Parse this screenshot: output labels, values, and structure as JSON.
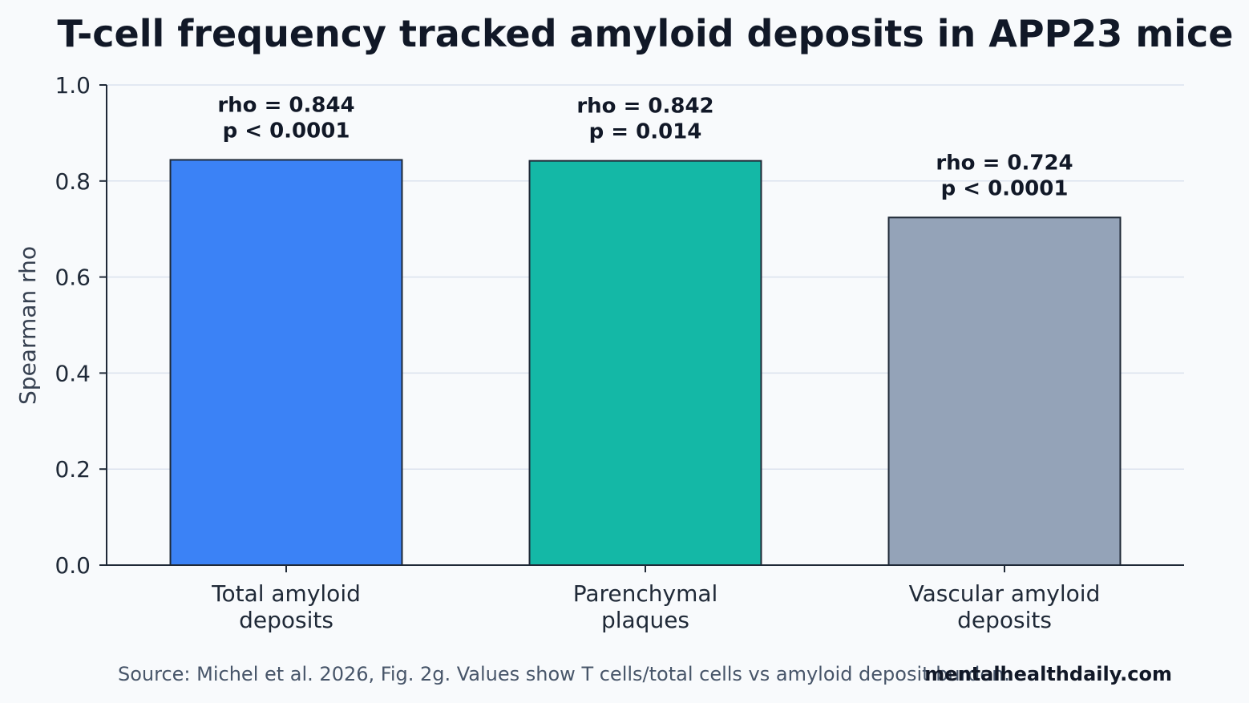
{
  "chart_data": {
    "type": "bar",
    "title": "T-cell frequency tracked amyloid deposits in APP23 mice",
    "ylabel": "Spearman rho",
    "xlabel": "",
    "ylim": [
      0,
      1.0
    ],
    "yticks": [
      "0.0",
      "0.2",
      "0.4",
      "0.6",
      "0.8",
      "1.0"
    ],
    "ytick_values": [
      0,
      0.2,
      0.4,
      0.6,
      0.8,
      1.0
    ],
    "grid": true,
    "categories": [
      [
        "Total amyloid",
        "deposits"
      ],
      [
        "Parenchymal",
        "plaques"
      ],
      [
        "Vascular amyloid",
        "deposits"
      ]
    ],
    "values": [
      0.844,
      0.842,
      0.724
    ],
    "annotations": [
      [
        "rho = 0.844",
        "p < 0.0001"
      ],
      [
        "rho = 0.842",
        "p = 0.014"
      ],
      [
        "rho = 0.724",
        "p < 0.0001"
      ]
    ],
    "colors": [
      "#3b82f6",
      "#14b8a6",
      "#94a3b8"
    ],
    "edge_color": "#1f2937"
  },
  "footer": {
    "source": "Source: Michel et al. 2026, Fig. 2g. Values show T cells/total cells vs amyloid deposit burden.",
    "brand": "mentalhealthdaily.com"
  }
}
